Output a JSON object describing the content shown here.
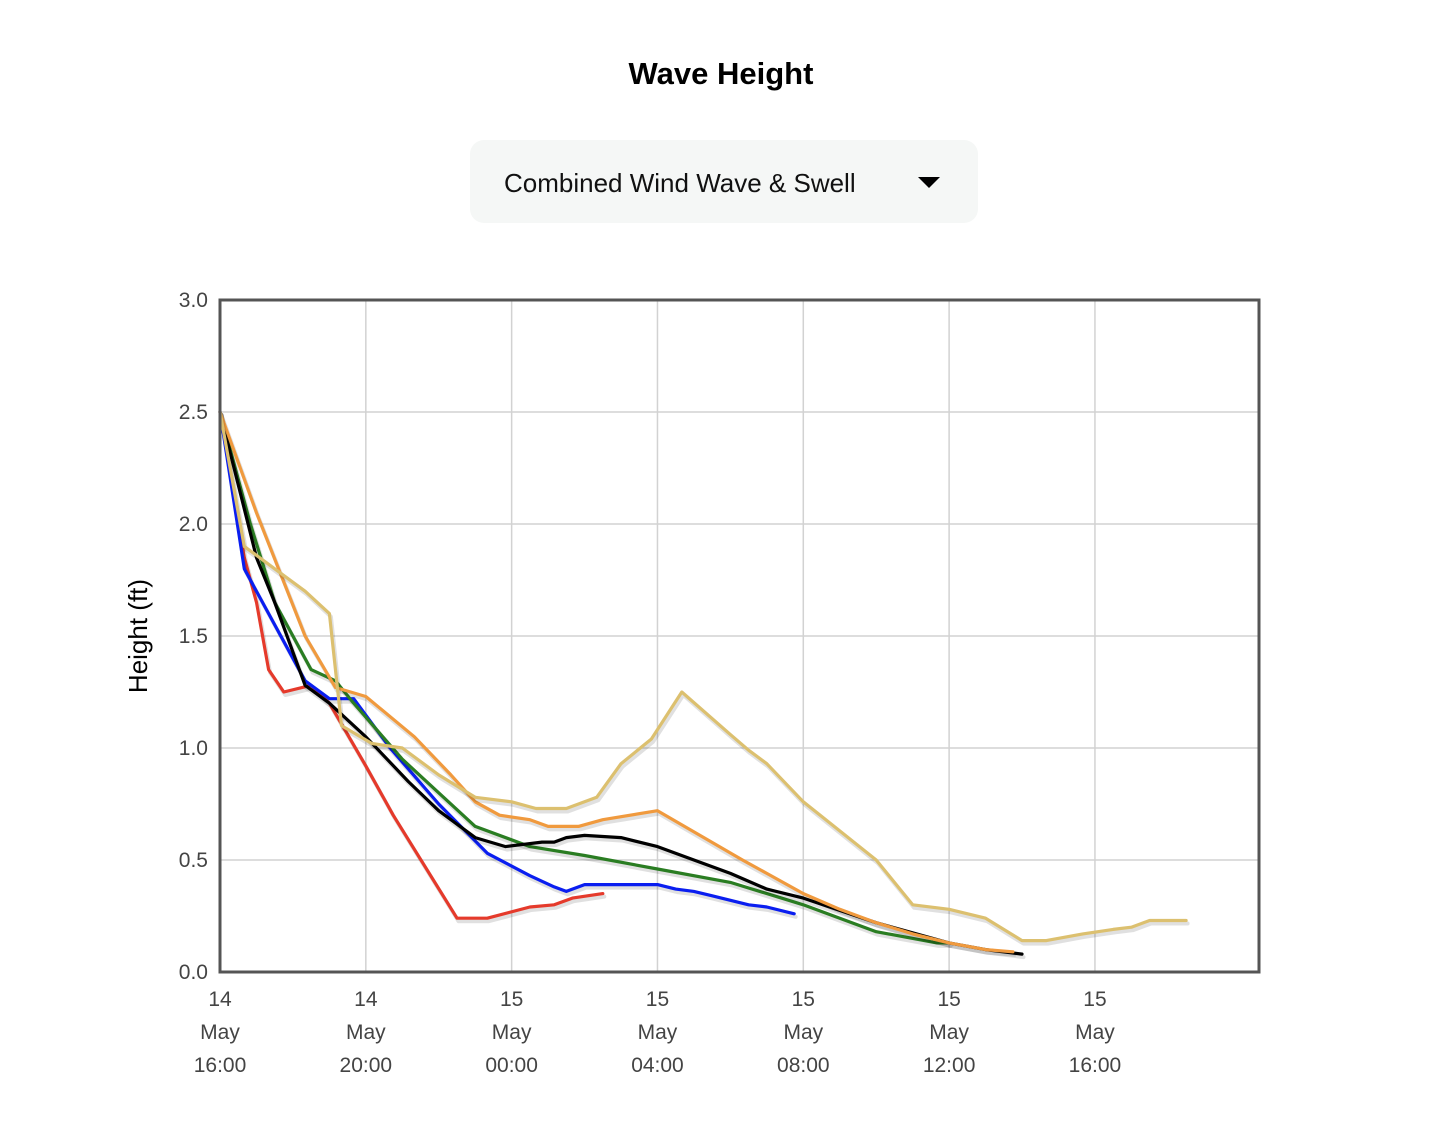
{
  "title": "Wave Height",
  "dropdown": {
    "selected": "Combined Wind Wave & Swell",
    "icon": "caret-down-icon"
  },
  "chart_data": {
    "type": "line",
    "title": "Wave Height",
    "xlabel": "",
    "ylabel": "Height (ft)",
    "ylim": [
      0,
      3
    ],
    "yticks": [
      "0.0",
      "0.5",
      "1.0",
      "1.5",
      "2.0",
      "2.5",
      "3.0"
    ],
    "xlim": [
      "2024-05-14T16:00",
      "2024-05-15T20:30"
    ],
    "xticks": [
      {
        "day": "14",
        "month": "May",
        "time": "16:00"
      },
      {
        "day": "14",
        "month": "May",
        "time": "20:00"
      },
      {
        "day": "15",
        "month": "May",
        "time": "00:00"
      },
      {
        "day": "15",
        "month": "May",
        "time": "04:00"
      },
      {
        "day": "15",
        "month": "May",
        "time": "08:00"
      },
      {
        "day": "15",
        "month": "May",
        "time": "12:00"
      },
      {
        "day": "15",
        "month": "May",
        "time": "16:00"
      }
    ],
    "grid": true,
    "legend": "none",
    "series": [
      {
        "color": "#e53a2b",
        "points": [
          [
            "14 16:00",
            2.5
          ],
          [
            "14 16:40",
            1.85
          ],
          [
            "14 17:00",
            1.65
          ],
          [
            "14 17:20",
            1.35
          ],
          [
            "14 17:45",
            1.25
          ],
          [
            "14 18:30",
            1.28
          ],
          [
            "14 19:00",
            1.2
          ],
          [
            "14 20:00",
            0.92
          ],
          [
            "14 20:45",
            0.7
          ],
          [
            "14 22:30",
            0.24
          ],
          [
            "14 23:20",
            0.24
          ],
          [
            "15 00:30",
            0.29
          ],
          [
            "15 01:10",
            0.3
          ],
          [
            "15 01:40",
            0.33
          ],
          [
            "15 02:30",
            0.35
          ]
        ]
      },
      {
        "color": "#0a1ef0",
        "points": [
          [
            "14 16:00",
            2.5
          ],
          [
            "14 16:40",
            1.8
          ],
          [
            "14 18:20",
            1.3
          ],
          [
            "14 19:00",
            1.22
          ],
          [
            "14 19:40",
            1.22
          ],
          [
            "14 20:40",
            1.0
          ],
          [
            "14 22:00",
            0.75
          ],
          [
            "14 23:20",
            0.53
          ],
          [
            "15 00:30",
            0.43
          ],
          [
            "15 01:10",
            0.38
          ],
          [
            "15 01:30",
            0.36
          ],
          [
            "15 02:00",
            0.39
          ],
          [
            "15 04:00",
            0.39
          ],
          [
            "15 04:30",
            0.37
          ],
          [
            "15 05:00",
            0.36
          ],
          [
            "15 05:30",
            0.34
          ],
          [
            "15 06:00",
            0.32
          ],
          [
            "15 06:30",
            0.3
          ],
          [
            "15 07:00",
            0.29
          ],
          [
            "15 07:45",
            0.26
          ]
        ]
      },
      {
        "color": "#2a7d22",
        "points": [
          [
            "14 16:00",
            2.5
          ],
          [
            "14 16:50",
            2.0
          ],
          [
            "14 17:30",
            1.65
          ],
          [
            "14 18:30",
            1.35
          ],
          [
            "14 19:10",
            1.3
          ],
          [
            "14 19:40",
            1.2
          ],
          [
            "14 21:00",
            0.95
          ],
          [
            "14 22:00",
            0.8
          ],
          [
            "14 23:00",
            0.65
          ],
          [
            "15 00:30",
            0.56
          ],
          [
            "15 02:00",
            0.52
          ],
          [
            "15 04:00",
            0.46
          ],
          [
            "15 06:00",
            0.4
          ],
          [
            "15 08:00",
            0.3
          ],
          [
            "15 10:00",
            0.18
          ],
          [
            "15 11:40",
            0.13
          ],
          [
            "15 12:00",
            0.13
          ]
        ]
      },
      {
        "color": "#000000",
        "points": [
          [
            "14 16:00",
            2.5
          ],
          [
            "14 17:00",
            1.85
          ],
          [
            "14 17:30",
            1.65
          ],
          [
            "14 18:20",
            1.28
          ],
          [
            "14 19:00",
            1.2
          ],
          [
            "14 20:00",
            1.05
          ],
          [
            "14 21:10",
            0.85
          ],
          [
            "14 22:00",
            0.72
          ],
          [
            "14 23:00",
            0.6
          ],
          [
            "14 23:50",
            0.56
          ],
          [
            "15 00:20",
            0.57
          ],
          [
            "15 00:50",
            0.58
          ],
          [
            "15 01:10",
            0.58
          ],
          [
            "15 01:30",
            0.6
          ],
          [
            "15 02:00",
            0.61
          ],
          [
            "15 03:00",
            0.6
          ],
          [
            "15 04:00",
            0.56
          ],
          [
            "15 05:00",
            0.5
          ],
          [
            "15 06:00",
            0.44
          ],
          [
            "15 07:00",
            0.37
          ],
          [
            "15 08:00",
            0.33
          ],
          [
            "15 10:00",
            0.22
          ],
          [
            "15 12:00",
            0.13
          ],
          [
            "15 13:00",
            0.1
          ],
          [
            "15 14:00",
            0.08
          ]
        ]
      },
      {
        "color": "#f09a3e",
        "points": [
          [
            "14 16:00",
            2.5
          ],
          [
            "14 17:00",
            2.05
          ],
          [
            "14 18:20",
            1.5
          ],
          [
            "14 19:10",
            1.27
          ],
          [
            "14 20:00",
            1.23
          ],
          [
            "14 21:20",
            1.05
          ],
          [
            "14 22:20",
            0.88
          ],
          [
            "14 23:00",
            0.76
          ],
          [
            "14 23:40",
            0.7
          ],
          [
            "15 00:30",
            0.68
          ],
          [
            "15 01:00",
            0.65
          ],
          [
            "15 01:50",
            0.65
          ],
          [
            "15 02:30",
            0.68
          ],
          [
            "15 04:00",
            0.72
          ],
          [
            "15 05:10",
            0.61
          ],
          [
            "15 06:20",
            0.5
          ],
          [
            "15 07:00",
            0.44
          ],
          [
            "15 08:00",
            0.35
          ],
          [
            "15 09:00",
            0.28
          ],
          [
            "15 10:00",
            0.22
          ],
          [
            "15 11:00",
            0.17
          ],
          [
            "15 12:00",
            0.13
          ],
          [
            "15 13:00",
            0.1
          ],
          [
            "15 13:45",
            0.09
          ]
        ]
      },
      {
        "color": "#dcc06f",
        "points": [
          [
            "14 16:00",
            2.5
          ],
          [
            "14 16:40",
            1.9
          ],
          [
            "14 17:30",
            1.8
          ],
          [
            "14 18:20",
            1.7
          ],
          [
            "14 19:00",
            1.6
          ],
          [
            "14 19:20",
            1.1
          ],
          [
            "14 20:10",
            1.02
          ],
          [
            "14 21:00",
            1.0
          ],
          [
            "14 22:00",
            0.88
          ],
          [
            "14 23:00",
            0.78
          ],
          [
            "15 00:00",
            0.76
          ],
          [
            "15 00:40",
            0.73
          ],
          [
            "15 01:30",
            0.73
          ],
          [
            "15 02:20",
            0.78
          ],
          [
            "15 03:00",
            0.93
          ],
          [
            "15 03:50",
            1.04
          ],
          [
            "15 04:40",
            1.25
          ],
          [
            "15 06:00",
            1.06
          ],
          [
            "15 06:30",
            0.99
          ],
          [
            "15 07:00",
            0.93
          ],
          [
            "15 08:00",
            0.76
          ],
          [
            "15 10:00",
            0.5
          ],
          [
            "15 11:00",
            0.3
          ],
          [
            "15 12:00",
            0.28
          ],
          [
            "15 13:00",
            0.24
          ],
          [
            "15 14:00",
            0.14
          ],
          [
            "15 14:40",
            0.14
          ],
          [
            "15 15:40",
            0.17
          ],
          [
            "15 16:30",
            0.19
          ],
          [
            "15 17:00",
            0.2
          ],
          [
            "15 17:30",
            0.23
          ],
          [
            "15 18:30",
            0.23
          ]
        ]
      }
    ]
  }
}
